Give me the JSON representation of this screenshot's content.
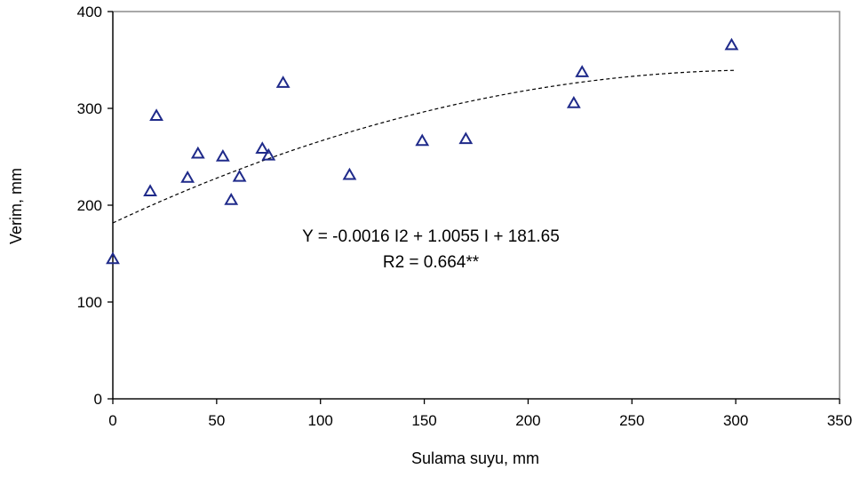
{
  "chart_data": {
    "type": "scatter",
    "title": "",
    "xlabel": "Sulama suyu, mm",
    "ylabel": "Verim, mm",
    "xlim": [
      0,
      350
    ],
    "ylim": [
      0,
      400
    ],
    "x_ticks": [
      0,
      50,
      100,
      150,
      200,
      250,
      300,
      350
    ],
    "y_ticks": [
      0,
      100,
      200,
      300,
      400
    ],
    "x_tick_labels": [
      "0",
      "50",
      "100",
      "150",
      "200",
      "250",
      "300",
      "350"
    ],
    "y_tick_labels": [
      "0",
      "100",
      "200",
      "300",
      "400"
    ],
    "grid": false,
    "legend": "none",
    "marker": "triangle-open",
    "marker_color": "#1f2a8a",
    "series": [
      {
        "points": [
          {
            "x": 0,
            "y": 144
          },
          {
            "x": 18,
            "y": 214
          },
          {
            "x": 21,
            "y": 292
          },
          {
            "x": 36,
            "y": 228
          },
          {
            "x": 41,
            "y": 253
          },
          {
            "x": 53,
            "y": 250
          },
          {
            "x": 57,
            "y": 205
          },
          {
            "x": 61,
            "y": 229
          },
          {
            "x": 72,
            "y": 258
          },
          {
            "x": 75,
            "y": 251
          },
          {
            "x": 82,
            "y": 326
          },
          {
            "x": 114,
            "y": 231
          },
          {
            "x": 149,
            "y": 266
          },
          {
            "x": 170,
            "y": 268
          },
          {
            "x": 222,
            "y": 305
          },
          {
            "x": 226,
            "y": 337
          },
          {
            "x": 298,
            "y": 365
          }
        ]
      }
    ],
    "trendline": {
      "type": "polynomial",
      "coefficients": {
        "a2": -0.0016,
        "a1": 1.0055,
        "a0": 181.65
      },
      "x_range": [
        0,
        300
      ],
      "style": "dashed"
    },
    "annotations": [
      "Y = -0.0016 I2 + 1.0055  I + 181.65",
      "R2 = 0.664**"
    ]
  }
}
